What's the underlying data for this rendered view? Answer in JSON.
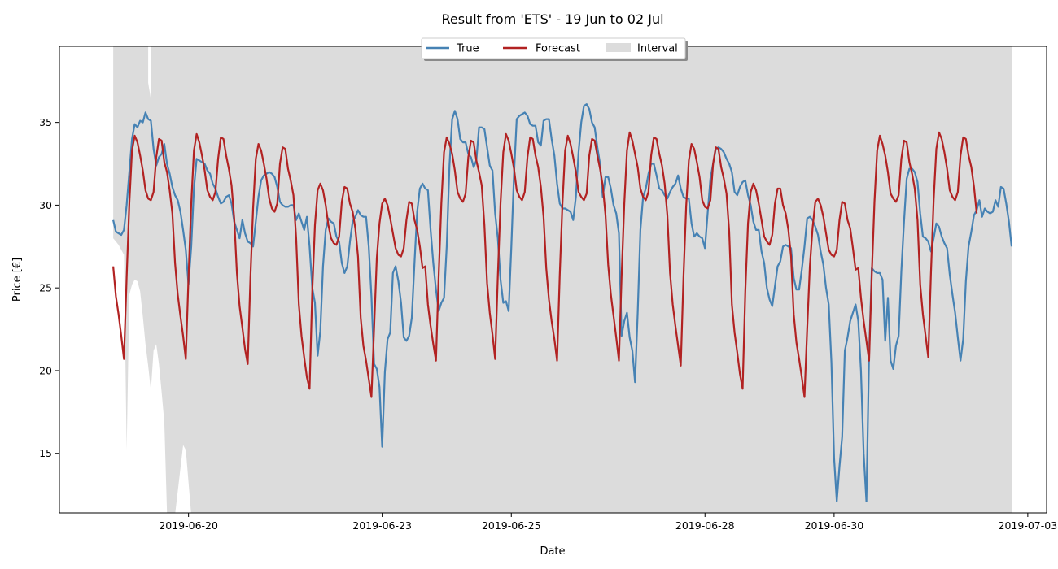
{
  "chart_data": {
    "type": "line",
    "title": "Result from 'ETS' - 19 Jun to 02 Jul",
    "xlabel": "Date",
    "ylabel": "Price [€]",
    "xlim": [
      "2019-06-18 00:00",
      "2019-07-03 07:00"
    ],
    "ylim": [
      11.4,
      39.6
    ],
    "grid": false,
    "legend_position": "top-center",
    "x_ticks": [
      "2019-06-20",
      "2019-06-23",
      "2019-06-25",
      "2019-06-28",
      "2019-06-30",
      "2019-07-03"
    ],
    "y_ticks": [
      15,
      20,
      25,
      30,
      35
    ],
    "x_start": "2019-06-18 20:00",
    "x_step_hours": 1,
    "colors": {
      "true": "#4682b4",
      "forecast": "#b22222",
      "interval": "#dcdcdc"
    },
    "series": [
      {
        "name": "True",
        "color": "#4682b4",
        "values": [
          29.1,
          28.4,
          28.3,
          28.2,
          28.5,
          30.0,
          32.0,
          34.0,
          34.9,
          34.7,
          35.1,
          35.0,
          35.6,
          35.2,
          35.1,
          33.4,
          32.4,
          32.9,
          33.1,
          33.7,
          32.5,
          31.9,
          31.1,
          30.6,
          30.3,
          29.6,
          28.5,
          27.3,
          25.2,
          27.5,
          31.0,
          32.8,
          32.7,
          32.6,
          32.5,
          32.1,
          31.9,
          31.3,
          31.0,
          30.5,
          30.1,
          30.2,
          30.5,
          30.6,
          30.1,
          29.0,
          28.5,
          28.0,
          29.1,
          28.3,
          27.8,
          27.7,
          27.5,
          29.0,
          30.5,
          31.5,
          31.8,
          31.9,
          32.0,
          31.9,
          31.7,
          31.1,
          30.2,
          30.0,
          29.9,
          29.9,
          30.0,
          30.0,
          29.1,
          29.5,
          29.0,
          28.5,
          29.3,
          27.5,
          25.0,
          24.1,
          20.9,
          22.4,
          26.3,
          28.5,
          29.2,
          29.0,
          28.9,
          28.1,
          27.8,
          26.5,
          25.9,
          26.3,
          27.8,
          29.0,
          29.3,
          29.7,
          29.4,
          29.3,
          29.3,
          27.5,
          24.5,
          20.4,
          20.1,
          19.0,
          15.4,
          19.9,
          21.9,
          22.3,
          25.9,
          26.3,
          25.4,
          24.1,
          22.0,
          21.8,
          22.1,
          23.2,
          26.5,
          29.6,
          31.0,
          31.3,
          31.0,
          30.9,
          28.5,
          26.5,
          24.9,
          23.6,
          24.1,
          24.4,
          27.5,
          32.4,
          35.2,
          35.7,
          35.2,
          34.0,
          33.8,
          33.8,
          33.1,
          32.9,
          32.3,
          32.7,
          34.7,
          34.7,
          34.6,
          33.5,
          32.4,
          32.1,
          29.5,
          28.0,
          25.5,
          24.1,
          24.2,
          23.6,
          27.5,
          31.9,
          35.2,
          35.4,
          35.5,
          35.6,
          35.4,
          34.9,
          34.8,
          34.8,
          33.8,
          33.6,
          35.1,
          35.2,
          35.2,
          34.0,
          33.0,
          31.3,
          30.1,
          29.8,
          29.8,
          29.7,
          29.6,
          29.1,
          30.5,
          33.2,
          35.0,
          36.0,
          36.1,
          35.8,
          35.0,
          34.7,
          33.5,
          32.5,
          30.5,
          31.7,
          31.7,
          31.0,
          30.0,
          29.5,
          28.3,
          22.1,
          23.0,
          23.5,
          22.0,
          21.2,
          19.3,
          23.5,
          28.5,
          30.5,
          31.0,
          31.9,
          32.5,
          32.5,
          31.8,
          31.0,
          30.9,
          30.6,
          30.4,
          30.8,
          31.1,
          31.3,
          31.8,
          31.0,
          30.5,
          30.4,
          30.4,
          28.9,
          28.1,
          28.3,
          28.1,
          28.0,
          27.4,
          29.5,
          31.6,
          32.5,
          33.4,
          33.5,
          33.4,
          33.2,
          32.8,
          32.5,
          32.0,
          30.8,
          30.6,
          31.1,
          31.4,
          31.5,
          30.6,
          30.0,
          29.0,
          28.5,
          28.5,
          27.2,
          26.5,
          25.0,
          24.3,
          23.9,
          25.1,
          26.3,
          26.6,
          27.5,
          27.6,
          27.5,
          27.4,
          25.6,
          24.9,
          24.9,
          26.1,
          27.5,
          29.2,
          29.3,
          29.1,
          28.7,
          28.2,
          27.2,
          26.4,
          25.0,
          24.0,
          20.5,
          14.7,
          12.1,
          14.2,
          16.0,
          21.2,
          22.0,
          23.0,
          23.5,
          24.0,
          23.0,
          20.0,
          15.0,
          12.1,
          21.0,
          26.2,
          26.0,
          25.9,
          25.9,
          25.5,
          21.8,
          24.4,
          20.6,
          20.1,
          21.5,
          22.1,
          26.0,
          29.0,
          31.6,
          32.2,
          32.2,
          32.0,
          31.4,
          29.5,
          28.1,
          28.0,
          27.8,
          27.2,
          28.0,
          28.9,
          28.7,
          28.1,
          27.7,
          27.4,
          25.8,
          24.6,
          23.5,
          22.0,
          20.6,
          21.9,
          25.4,
          27.5,
          28.4,
          29.4,
          29.7,
          30.3,
          29.3,
          29.8,
          29.6,
          29.5,
          29.6,
          30.3,
          29.9,
          31.1,
          31.0,
          30.1,
          29.0,
          27.5
        ]
      },
      {
        "name": "Forecast",
        "color": "#b22222",
        "values": [
          26.3,
          24.5,
          23.4,
          22.1,
          20.7,
          25.6,
          30.1,
          33.3,
          34.2,
          33.8,
          33.0,
          32.1,
          30.9,
          30.4,
          30.3,
          30.8,
          32.9,
          34.0,
          33.9,
          32.6,
          32.0,
          30.9,
          29.5,
          26.5,
          24.6,
          23.3,
          22.1,
          20.7,
          25.6,
          30.1,
          33.3,
          34.3,
          33.8,
          33.0,
          32.1,
          30.9,
          30.5,
          30.3,
          30.8,
          32.8,
          34.1,
          34.0,
          33.0,
          32.2,
          31.2,
          29.2,
          25.9,
          23.9,
          22.6,
          21.3,
          20.4,
          25.6,
          29.8,
          32.8,
          33.7,
          33.3,
          32.5,
          31.6,
          30.4,
          29.8,
          29.6,
          30.1,
          32.5,
          33.5,
          33.4,
          32.2,
          31.5,
          30.6,
          28.0,
          24.0,
          22.1,
          20.8,
          19.6,
          18.9,
          24.8,
          28.8,
          30.9,
          31.3,
          30.9,
          30.0,
          28.8,
          28.0,
          27.7,
          27.6,
          28.1,
          30.2,
          31.1,
          31.0,
          30.1,
          29.6,
          28.6,
          26.9,
          23.2,
          21.5,
          20.6,
          19.5,
          18.4,
          22.6,
          26.8,
          28.9,
          30.1,
          30.4,
          30.0,
          29.2,
          28.3,
          27.4,
          27.0,
          26.9,
          27.4,
          29.1,
          30.2,
          30.1,
          29.1,
          28.5,
          27.5,
          26.2,
          26.3,
          24.0,
          22.7,
          21.6,
          20.6,
          25.7,
          30.1,
          33.2,
          34.1,
          33.7,
          33.1,
          32.1,
          30.8,
          30.4,
          30.2,
          30.7,
          32.9,
          33.9,
          33.8,
          32.7,
          32.0,
          31.2,
          28.8,
          25.3,
          23.5,
          22.2,
          20.7,
          25.7,
          30.1,
          33.2,
          34.3,
          33.9,
          33.1,
          32.2,
          30.9,
          30.5,
          30.3,
          30.8,
          32.9,
          34.1,
          34.0,
          33.0,
          32.3,
          31.1,
          29.3,
          26.2,
          24.3,
          23.0,
          21.9,
          20.6,
          25.8,
          30.1,
          33.3,
          34.2,
          33.7,
          32.9,
          32.0,
          30.8,
          30.5,
          30.3,
          30.7,
          33.0,
          34.0,
          33.9,
          33.0,
          32.2,
          31.2,
          29.4,
          26.4,
          24.6,
          23.3,
          22.0,
          20.6,
          25.7,
          30.1,
          33.3,
          34.4,
          33.9,
          33.1,
          32.3,
          31.0,
          30.5,
          30.3,
          30.8,
          33.0,
          34.1,
          34.0,
          33.1,
          32.4,
          31.3,
          29.4,
          25.9,
          24.0,
          22.7,
          21.5,
          20.3,
          25.6,
          29.9,
          32.7,
          33.7,
          33.4,
          32.6,
          31.7,
          30.3,
          29.9,
          29.8,
          30.3,
          32.5,
          33.5,
          33.4,
          32.3,
          31.6,
          30.7,
          28.4,
          24.0,
          22.3,
          21.1,
          19.8,
          18.9,
          24.8,
          28.9,
          30.8,
          31.3,
          30.9,
          30.1,
          29.1,
          28.1,
          27.8,
          27.6,
          28.2,
          30.1,
          31.0,
          31.0,
          30.0,
          29.5,
          28.5,
          26.9,
          23.4,
          21.7,
          20.7,
          19.6,
          18.4,
          22.5,
          26.3,
          28.6,
          30.2,
          30.4,
          30.0,
          29.3,
          28.3,
          27.3,
          27.0,
          26.9,
          27.3,
          29.1,
          30.2,
          30.1,
          29.1,
          28.6,
          27.4,
          26.1,
          26.2,
          24.4,
          23.0,
          21.8,
          20.6,
          25.8,
          30.2,
          33.3,
          34.2,
          33.7,
          33.0,
          32.0,
          30.7,
          30.4,
          30.2,
          30.6,
          32.8,
          33.9,
          33.8,
          32.6,
          31.9,
          31.0,
          29.1,
          25.2,
          23.4,
          22.1,
          20.8,
          25.9,
          30.3,
          33.4,
          34.4,
          34.0,
          33.2,
          32.2,
          30.9,
          30.5,
          30.3,
          30.8,
          33.0,
          34.1,
          34.0,
          33.0,
          32.3,
          31.1,
          29.5
        ]
      }
    ],
    "interval": {
      "name": "Interval",
      "upper_min": 39.6,
      "lower_min": 11.4,
      "lower_values": [
        28.0,
        27.8,
        27.6,
        27.3,
        27.0,
        15.2,
        24.6,
        25.2,
        25.5,
        25.4,
        24.8,
        23.3,
        21.6,
        20.3,
        18.8,
        21.2,
        21.6,
        20.4,
        18.7,
        16.9,
        null,
        null,
        null,
        null,
        null,
        null,
        null,
        null,
        null,
        null,
        null,
        null,
        null,
        null,
        null,
        null,
        null,
        null,
        null,
        null,
        null,
        null,
        null,
        null,
        null,
        null,
        null,
        null,
        null,
        null,
        null,
        null,
        null,
        null,
        null,
        null,
        null,
        null,
        null,
        null,
        null,
        null,
        null,
        null,
        null,
        null,
        null,
        null,
        null,
        null,
        null,
        null,
        null,
        null,
        null,
        null,
        null,
        null,
        null,
        null,
        null,
        null,
        null,
        null,
        null,
        null,
        null,
        null,
        null,
        null,
        null,
        null,
        null,
        null,
        null,
        null,
        null,
        null,
        null,
        null,
        null,
        null,
        null,
        null,
        null,
        null,
        null,
        null,
        null,
        null,
        null,
        null,
        null,
        null,
        null,
        null,
        null,
        null,
        null,
        null,
        null,
        null,
        null,
        null,
        null,
        null,
        null,
        null,
        null,
        null,
        null,
        null,
        null,
        null,
        null,
        null,
        null,
        null,
        null,
        null,
        null,
        null,
        null,
        null,
        null,
        null,
        null,
        null,
        null,
        null,
        null,
        null,
        null,
        null,
        null,
        null,
        null,
        null,
        null,
        null,
        null,
        null,
        null,
        null,
        null,
        null,
        null,
        null,
        null,
        null,
        null,
        null,
        null,
        null,
        null,
        null,
        null,
        null,
        null,
        null,
        null,
        null,
        null,
        null,
        null,
        null,
        null,
        null,
        null,
        null,
        null,
        null,
        null,
        null,
        null,
        null,
        null,
        null,
        null,
        null,
        null,
        null,
        null,
        null,
        null,
        null,
        null,
        null,
        null,
        null,
        null,
        null,
        null,
        null,
        null,
        null,
        null,
        null,
        null,
        null,
        null,
        null,
        null,
        null,
        null,
        null,
        null,
        null,
        null,
        null,
        null,
        null,
        null,
        null,
        null,
        null,
        null,
        null,
        null,
        null,
        null,
        null,
        null,
        null,
        null,
        null,
        null,
        null,
        null,
        null,
        null,
        null,
        null,
        null,
        null,
        null,
        null,
        null,
        null,
        null,
        null,
        null,
        null,
        null,
        null,
        null,
        null,
        null,
        null,
        null,
        null,
        null,
        null,
        null,
        null,
        null,
        null,
        null,
        null,
        null,
        null,
        null,
        null,
        null,
        null,
        null,
        null,
        null,
        null,
        null,
        null,
        null,
        null,
        null,
        null,
        null,
        null,
        null,
        null,
        null,
        null,
        null,
        null,
        null,
        null,
        null,
        null,
        null,
        null,
        null,
        null,
        null,
        null,
        null,
        null,
        null,
        null,
        null,
        null,
        null,
        null,
        null,
        null,
        null,
        null,
        null,
        null,
        null,
        null,
        null,
        null,
        null,
        null,
        null,
        null,
        null,
        null,
        null,
        null,
        null,
        null,
        null,
        null,
        null,
        null
      ],
      "gap_bottom": 15.5,
      "upper_notch": 37.4
    }
  }
}
